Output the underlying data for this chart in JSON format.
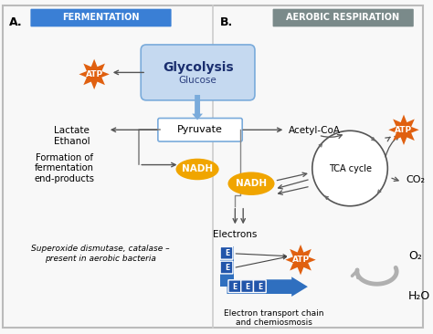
{
  "bg_color": "#f8f8f8",
  "border_color": "#bbbbbb",
  "label_A": "A.",
  "label_B": "B.",
  "title_fermentation": "FERMENTATION",
  "title_aerobic": "AEROBIC RESPIRATION",
  "title_fermentation_bg": "#3a7fd5",
  "title_aerobic_bg": "#7a8a8a",
  "title_text_color": "#ffffff",
  "glycolysis_text": "Glycolysis",
  "glycolysis_sub": "Glucose",
  "glycolysis_box_color": "#c5d9f0",
  "glycolysis_border": "#7aabdb",
  "pyruvate_text": "Pyruvate",
  "pyruvate_box_color": "#ffffff",
  "pyruvate_border": "#7aabdb",
  "nadh_color": "#f0a500",
  "atp_color": "#e06010",
  "tca_text": "TCA cycle",
  "acetyl_coa": "Acetyl-CoA",
  "co2_text": "CO₂",
  "electrons_text": "Electrons",
  "etc_text": "Electron transport chain\nand chemiosmosis",
  "lactate_ethanol": "Lactate\nEthanol",
  "formation_text": "Formation of\nfermentation\nend-products",
  "superoxide_text": "Superoxide dismutase, catalase –\npresent in aerobic bacteria",
  "o2_text": "O₂",
  "h2o_text": "H₂O",
  "blue_arrow_color": "#2f6fbf",
  "gray_arrow_color": "#b0b0b0",
  "arrow_color": "#555555",
  "divider_color": "#cccccc"
}
